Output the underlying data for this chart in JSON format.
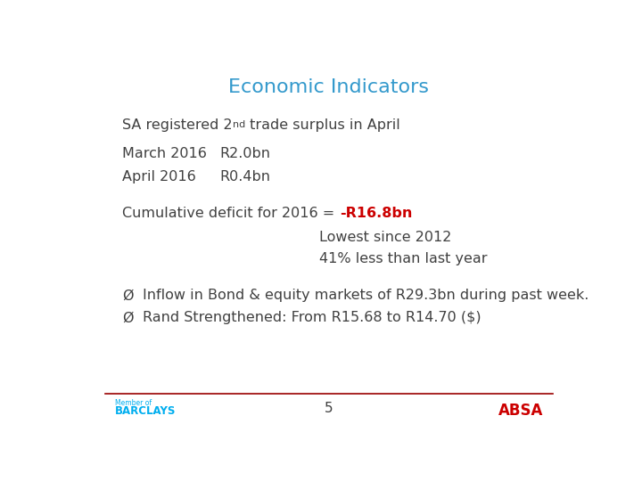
{
  "title": "Economic Indicators",
  "title_color": "#3399CC",
  "background_color": "#FFFFFF",
  "text_color": "#404040",
  "red_color": "#CC0000",
  "barclays_color": "#00AEEF",
  "absa_color": "#CC0000",
  "footer_line_color": "#990000",
  "footer_number": "5",
  "line1_pre": "SA registered 2",
  "line1_sup": "nd",
  "line1_post": " trade surplus in April",
  "line2_label": "March 2016",
  "line2_value": "R2.0bn",
  "line3_label": "April 2016",
  "line3_value": "R0.4bn",
  "cumul_prefix": "Cumulative deficit for 2016 = ",
  "cumul_red": "-R16.8bn",
  "cumul_sub1": "Lowest since 2012",
  "cumul_sub2": "41% less than last year",
  "bullet_char": "Ø",
  "bullet1": "Inflow in Bond & equity markets of R29.3bn during past week.",
  "bullet2": "Rand Strengthened: From R15.68 to R14.70 ($)"
}
